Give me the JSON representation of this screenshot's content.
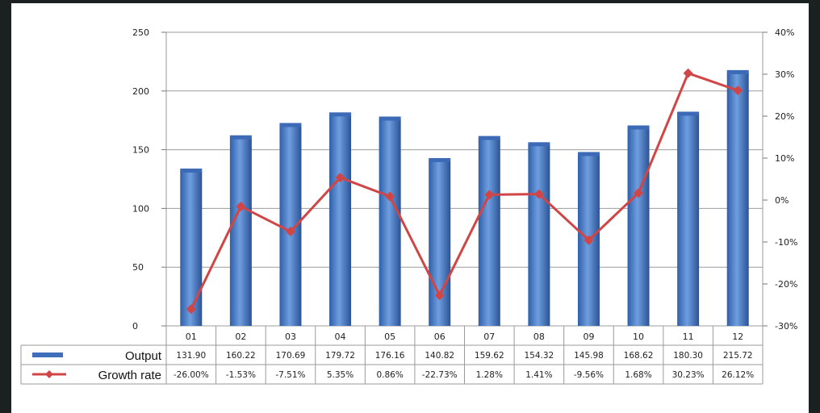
{
  "chart_data": {
    "type": "bar+line",
    "categories": [
      "01",
      "02",
      "03",
      "04",
      "05",
      "06",
      "07",
      "08",
      "09",
      "10",
      "11",
      "12"
    ],
    "series": [
      {
        "name": "Output",
        "kind": "bar",
        "axis": "left",
        "values": [
          131.9,
          160.22,
          170.69,
          179.72,
          176.16,
          140.82,
          159.62,
          154.32,
          145.98,
          168.62,
          180.3,
          215.72
        ],
        "labels": [
          "131.90",
          "160.22",
          "170.69",
          "179.72",
          "176.16",
          "140.82",
          "159.62",
          "154.32",
          "145.98",
          "168.62",
          "180.30",
          "215.72"
        ],
        "color": "#4a7cc4"
      },
      {
        "name": "Growth rate",
        "kind": "line",
        "axis": "right",
        "values": [
          -26.0,
          -1.53,
          -7.51,
          5.35,
          0.86,
          -22.73,
          1.28,
          1.41,
          -9.56,
          1.68,
          30.23,
          26.12
        ],
        "labels": [
          "-26.00%",
          "-1.53%",
          "-7.51%",
          "5.35%",
          "0.86%",
          "-22.73%",
          "1.28%",
          "1.41%",
          "-9.56%",
          "1.68%",
          "30.23%",
          "26.12%"
        ],
        "color": "#d04545"
      }
    ],
    "y_left": {
      "ylim": [
        0,
        250
      ],
      "ticks": [
        "0",
        "50",
        "100",
        "150",
        "200",
        "250"
      ]
    },
    "y_right": {
      "ylim": [
        -30,
        40
      ],
      "ticks": [
        "-30%",
        "-20%",
        "-10%",
        "0%",
        "10%",
        "20%",
        "30%",
        "40%"
      ]
    },
    "grid": true,
    "legend": "data-table-below"
  }
}
